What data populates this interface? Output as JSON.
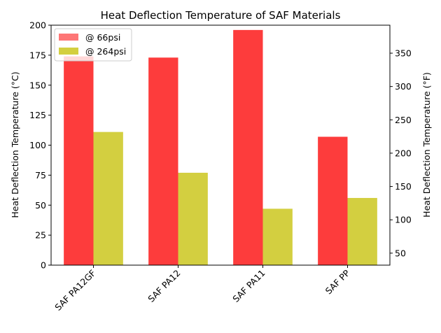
{
  "chart_data": {
    "type": "bar",
    "title": "Heat Deflection Temperature of SAF Materials",
    "categories": [
      "SAF PA12GF",
      "SAF PA12",
      "SAF PA11",
      "SAF PP"
    ],
    "series": [
      {
        "name": "@ 66psi",
        "values": [
          174,
          173,
          196,
          107
        ],
        "color": "#fd3c3c"
      },
      {
        "name": "@ 264psi",
        "values": [
          111,
          77,
          47,
          56
        ],
        "color": "#d3cf40"
      }
    ],
    "ylabel": "Heat Deflection Temperature (°C)",
    "ylim": [
      0,
      200
    ],
    "yticks": [
      0,
      25,
      50,
      75,
      100,
      125,
      150,
      175,
      200
    ],
    "y2label": "Heat Deflection Temperature (°F)",
    "y2lim": [
      32,
      392
    ],
    "y2ticks": [
      50,
      100,
      150,
      200,
      250,
      300,
      350
    ],
    "legend": "top-left",
    "grid": false
  }
}
